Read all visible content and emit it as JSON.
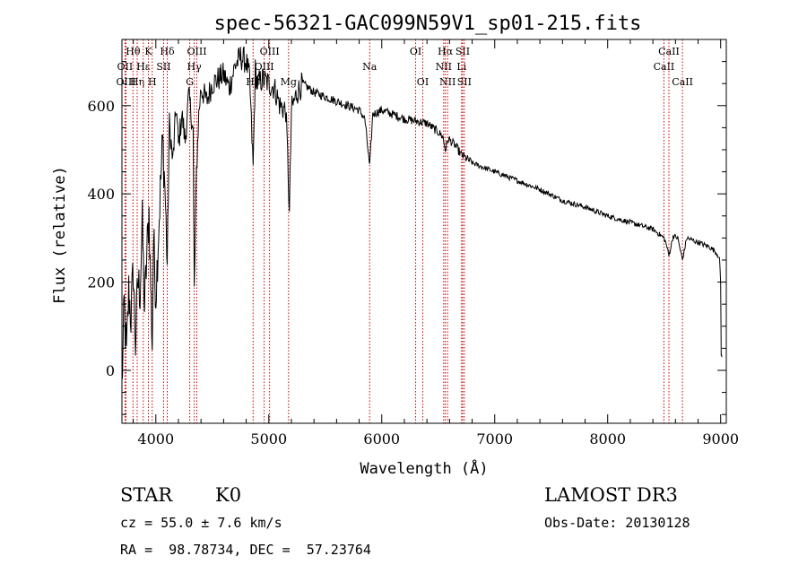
{
  "chart_data": {
    "type": "line",
    "title": "spec-56321-GAC099N59V1_sp01-215.fits",
    "xlabel": "Wavelength (Å)",
    "ylabel": "Flux (relative)",
    "xlim": [
      3700,
      9050
    ],
    "ylim": [
      -120,
      750
    ],
    "xticks": [
      4000,
      5000,
      6000,
      7000,
      8000,
      9000
    ],
    "yticks": [
      0,
      200,
      400,
      600
    ],
    "series": [
      {
        "name": "flux",
        "x": [
          3700,
          3720,
          3740,
          3760,
          3780,
          3800,
          3820,
          3840,
          3860,
          3880,
          3900,
          3920,
          3940,
          3950,
          3968,
          3980,
          4000,
          4030,
          4060,
          4080,
          4101,
          4120,
          4150,
          4180,
          4200,
          4230,
          4260,
          4290,
          4310,
          4330,
          4340,
          4360,
          4380,
          4400,
          4450,
          4500,
          4550,
          4600,
          4650,
          4700,
          4750,
          4800,
          4830,
          4861,
          4880,
          4900,
          4950,
          5000,
          5050,
          5100,
          5150,
          5172,
          5183,
          5200,
          5250,
          5300,
          5400,
          5500,
          5600,
          5700,
          5800,
          5850,
          5893,
          5920,
          6000,
          6100,
          6200,
          6300,
          6400,
          6500,
          6540,
          6563,
          6590,
          6650,
          6700,
          6800,
          6900,
          7000,
          7200,
          7400,
          7600,
          7800,
          8000,
          8200,
          8400,
          8498,
          8520,
          8542,
          8580,
          8620,
          8662,
          8700,
          8800,
          8900,
          8950,
          8980,
          8990,
          9000,
          9005,
          9010
        ],
        "values": [
          -40,
          150,
          30,
          180,
          120,
          230,
          60,
          200,
          180,
          330,
          140,
          260,
          360,
          240,
          60,
          300,
          170,
          350,
          520,
          420,
          240,
          560,
          470,
          600,
          510,
          580,
          520,
          620,
          590,
          540,
          180,
          450,
          580,
          640,
          610,
          650,
          660,
          670,
          640,
          690,
          710,
          700,
          660,
          460,
          680,
          650,
          660,
          650,
          640,
          600,
          590,
          450,
          350,
          590,
          630,
          650,
          630,
          620,
          610,
          600,
          590,
          570,
          460,
          580,
          590,
          580,
          570,
          565,
          560,
          540,
          530,
          500,
          525,
          510,
          490,
          470,
          460,
          450,
          430,
          410,
          385,
          370,
          350,
          335,
          320,
          300,
          285,
          260,
          305,
          300,
          250,
          300,
          290,
          280,
          270,
          260,
          250,
          200,
          40,
          30
        ]
      }
    ],
    "line_markers": [
      {
        "label": "Hθ",
        "wavelength": 3798,
        "row": 1
      },
      {
        "label": "OII",
        "wavelength": 3727,
        "row": 2
      },
      {
        "label": "OIII",
        "wavelength": 3736,
        "row": 3
      },
      {
        "label": "Hη",
        "wavelength": 3835,
        "row": 3
      },
      {
        "label": "Hε",
        "wavelength": 3889,
        "row": 2
      },
      {
        "label": "K",
        "wavelength": 3934,
        "row": 1
      },
      {
        "label": "H",
        "wavelength": 3968,
        "row": 3
      },
      {
        "label": "SII",
        "wavelength": 4069,
        "row": 2
      },
      {
        "label": "Hδ",
        "wavelength": 4101,
        "row": 1
      },
      {
        "label": "G",
        "wavelength": 4300,
        "row": 3
      },
      {
        "label": "Hγ",
        "wavelength": 4340,
        "row": 2
      },
      {
        "label": "OIII",
        "wavelength": 4363,
        "row": 1
      },
      {
        "label": "Hβ",
        "wavelength": 4861,
        "row": 3
      },
      {
        "label": "OIII",
        "wavelength": 4959,
        "row": 2
      },
      {
        "label": "OIII",
        "wavelength": 5007,
        "row": 1
      },
      {
        "label": "Mg",
        "wavelength": 5175,
        "row": 3
      },
      {
        "label": "Na",
        "wavelength": 5893,
        "row": 2
      },
      {
        "label": "OI",
        "wavelength": 6300,
        "row": 1
      },
      {
        "label": "OI",
        "wavelength": 6363,
        "row": 3
      },
      {
        "label": "NII",
        "wavelength": 6548,
        "row": 2
      },
      {
        "label": "Hα",
        "wavelength": 6563,
        "row": 1
      },
      {
        "label": "NII",
        "wavelength": 6583,
        "row": 3
      },
      {
        "label": "Li",
        "wavelength": 6707,
        "row": 2
      },
      {
        "label": "SII",
        "wavelength": 6716,
        "row": 1
      },
      {
        "label": "SII",
        "wavelength": 6731,
        "row": 3
      },
      {
        "label": "CaII",
        "wavelength": 8498,
        "row": 2
      },
      {
        "label": "CaII",
        "wavelength": 8542,
        "row": 1
      },
      {
        "label": "CaII",
        "wavelength": 8662,
        "row": 3
      }
    ],
    "marker_color": "#cc0000"
  },
  "info": {
    "object_class": "STAR",
    "subclass": "K0",
    "survey": "LAMOST DR3",
    "redshift": "cz = 55.0 ± 7.6 km/s",
    "obs_date": "Obs-Date: 20130128",
    "coords": "RA =  98.78734, DEC =  57.23764"
  }
}
